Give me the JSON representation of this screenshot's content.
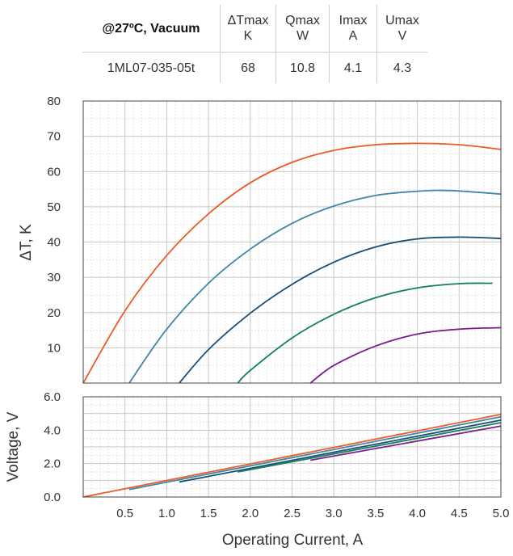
{
  "table": {
    "condition": "@27ºC, Vacuum",
    "columns": [
      {
        "name": "ΔTmax",
        "unit": "K"
      },
      {
        "name": "Qmax",
        "unit": "W"
      },
      {
        "name": "Imax",
        "unit": "A"
      },
      {
        "name": "Umax",
        "unit": "V"
      }
    ],
    "model": "1ML07-035-05t",
    "values": [
      "68",
      "10.8",
      "4.1",
      "4.3"
    ]
  },
  "chart_data": [
    {
      "type": "line",
      "ylabel": "ΔT, K",
      "ylim": [
        0,
        80
      ],
      "xlim": [
        0,
        5.0
      ],
      "yticks": [
        "10",
        "20",
        "30",
        "40",
        "50",
        "60",
        "70",
        "80"
      ],
      "grid": true,
      "series": [
        {
          "color": "#ee5a24",
          "x": [
            0.0,
            0.5,
            1.0,
            1.5,
            2.0,
            2.5,
            3.0,
            3.5,
            4.0,
            4.5,
            5.0
          ],
          "values": [
            0.0,
            20.5,
            36.2,
            48.0,
            56.8,
            62.6,
            66.0,
            67.6,
            68.0,
            67.6,
            66.3
          ]
        },
        {
          "color": "#3f86a8",
          "x": [
            0.55,
            1.0,
            1.5,
            2.0,
            2.5,
            3.0,
            3.5,
            4.0,
            4.4,
            5.0
          ],
          "values": [
            0.0,
            15.3,
            28.3,
            38.0,
            45.3,
            50.2,
            53.2,
            54.4,
            54.6,
            53.6
          ]
        },
        {
          "color": "#1b4d72",
          "x": [
            1.15,
            1.5,
            2.0,
            2.5,
            3.0,
            3.5,
            4.0,
            4.5,
            5.0
          ],
          "values": [
            0.0,
            9.5,
            19.8,
            28.0,
            34.3,
            38.6,
            40.9,
            41.4,
            41.0
          ]
        },
        {
          "color": "#13805a",
          "x": [
            1.85,
            2.0,
            2.5,
            3.0,
            3.5,
            4.0,
            4.5,
            4.9
          ],
          "values": [
            0.0,
            3.6,
            12.8,
            19.5,
            24.2,
            27.0,
            28.2,
            28.3
          ]
        },
        {
          "color": "#7a1e8e",
          "x": [
            2.72,
            3.0,
            3.5,
            4.0,
            4.5,
            5.0
          ],
          "values": [
            0.0,
            5.0,
            10.5,
            13.9,
            15.3,
            15.7
          ]
        }
      ]
    },
    {
      "type": "line",
      "xlabel": "Operating Current, A",
      "ylabel": "Voltage, V",
      "ylim": [
        0,
        6.0
      ],
      "xlim": [
        0,
        5.0
      ],
      "xticks": [
        "0.5",
        "1.0",
        "1.5",
        "2.0",
        "2.5",
        "3.0",
        "3.5",
        "4.0",
        "4.5",
        "5.0"
      ],
      "yticks": [
        "0.0",
        "2.0",
        "4.0",
        "6.0"
      ],
      "grid": true,
      "series": [
        {
          "color": "#ee5a24",
          "x": [
            0.0,
            5.0
          ],
          "values": [
            0.0,
            4.95
          ]
        },
        {
          "color": "#3f86a8",
          "x": [
            0.55,
            5.0
          ],
          "values": [
            0.45,
            4.8
          ]
        },
        {
          "color": "#1b4d72",
          "x": [
            1.15,
            5.0
          ],
          "values": [
            0.9,
            4.6
          ]
        },
        {
          "color": "#13805a",
          "x": [
            1.85,
            5.0
          ],
          "values": [
            1.5,
            4.45
          ]
        },
        {
          "color": "#7a1e8e",
          "x": [
            2.72,
            5.0
          ],
          "values": [
            2.2,
            4.25
          ]
        }
      ]
    }
  ]
}
